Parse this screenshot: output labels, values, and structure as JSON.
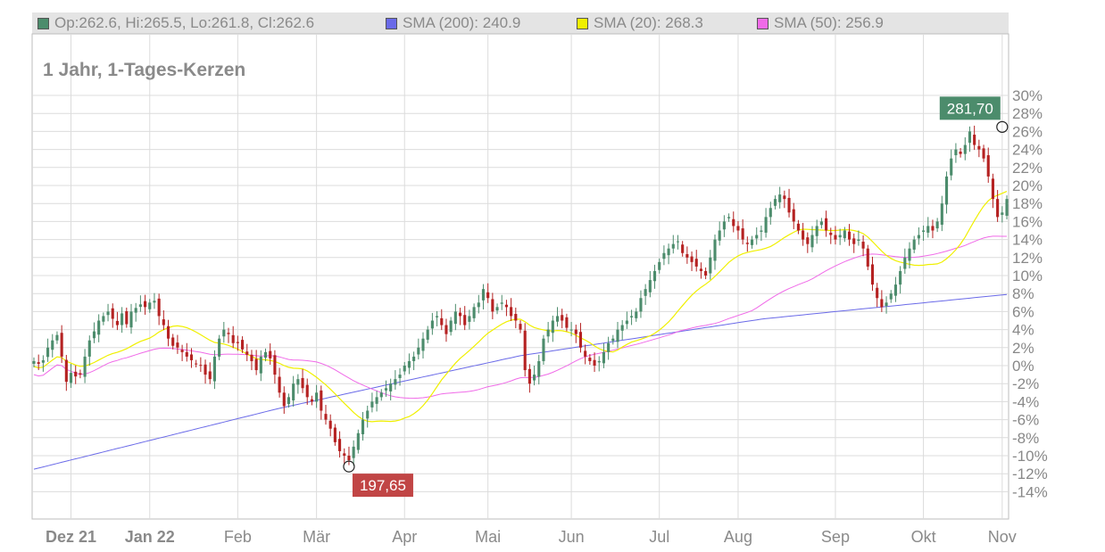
{
  "legend": {
    "ohlc": {
      "label": "Op:262.6, Hi:265.5, Lo:261.8, Cl:262.6",
      "color": "#4c8c6c"
    },
    "sma200": {
      "label": "SMA (200): 240.9",
      "color": "#6a6ae8"
    },
    "sma20": {
      "label": "SMA (20): 268.3",
      "color": "#f0f000"
    },
    "sma50": {
      "label": "SMA (50): 256.9",
      "color": "#f06ae8"
    }
  },
  "subtitle": "1 Jahr, 1-Tages-Kerzen",
  "colors": {
    "up": "#4c8c6c",
    "down": "#b52222",
    "grid": "#dcdcdc",
    "sma200": "#6a6ae8",
    "sma20": "#f0f000",
    "sma50": "#f06ae8"
  },
  "chart_data": {
    "type": "candlestick",
    "x_ticks": [
      {
        "label": "Dez 21",
        "bold": true,
        "index": 8
      },
      {
        "label": "Jan 22",
        "bold": true,
        "index": 25
      },
      {
        "label": "Feb",
        "bold": false,
        "index": 44
      },
      {
        "label": "Mär",
        "bold": false,
        "index": 61
      },
      {
        "label": "Apr",
        "bold": false,
        "index": 80
      },
      {
        "label": "Mai",
        "bold": false,
        "index": 98
      },
      {
        "label": "Jun",
        "bold": false,
        "index": 116
      },
      {
        "label": "Jul",
        "bold": false,
        "index": 135
      },
      {
        "label": "Aug",
        "bold": false,
        "index": 152
      },
      {
        "label": "Sep",
        "bold": false,
        "index": 173
      },
      {
        "label": "Okt",
        "bold": false,
        "index": 192
      },
      {
        "label": "Nov",
        "bold": false,
        "index": 209
      }
    ],
    "y_ticks": [
      "30%",
      "28%",
      "26%",
      "24%",
      "22%",
      "20%",
      "18%",
      "16%",
      "14%",
      "12%",
      "10%",
      "8%",
      "6%",
      "4%",
      "2%",
      "0%",
      "-2%",
      "-4%",
      "-6%",
      "-8%",
      "-10%",
      "-12%",
      "-14%"
    ],
    "ylim": [
      -17,
      31
    ],
    "annotations": [
      {
        "label": "281,70",
        "index": 209,
        "value": 26.5,
        "kind": "high",
        "color": "#4c8c6c"
      },
      {
        "label": "197,65",
        "index": 68,
        "value": -11.2,
        "kind": "low",
        "color": "#c14545"
      }
    ],
    "close_pct": [
      0.5,
      0.2,
      0.6,
      2.0,
      2.8,
      3.4,
      1.0,
      -1.8,
      -0.8,
      -1.2,
      -1.0,
      1.0,
      2.8,
      3.8,
      5.0,
      5.5,
      6.0,
      5.2,
      4.5,
      5.8,
      4.6,
      6.0,
      6.4,
      6.8,
      6.5,
      7.0,
      7.2,
      5.5,
      4.5,
      3.0,
      2.2,
      2.0,
      1.5,
      1.0,
      0.6,
      0.2,
      0.0,
      -1.0,
      -1.5,
      1.0,
      3.0,
      4.0,
      3.5,
      2.5,
      2.5,
      1.8,
      1.2,
      0.5,
      -0.5,
      1.0,
      1.5,
      0.8,
      -1.0,
      -3.0,
      -4.5,
      -3.5,
      -2.0,
      -1.5,
      -2.5,
      -3.5,
      -4.0,
      -3.0,
      -5.0,
      -6.0,
      -7.0,
      -8.5,
      -9.5,
      -10.0,
      -10.5,
      -9.0,
      -7.5,
      -6.0,
      -5.0,
      -4.0,
      -3.5,
      -3.0,
      -2.5,
      -2.0,
      -1.5,
      -1.0,
      0.0,
      0.5,
      1.0,
      2.0,
      3.0,
      4.0,
      5.0,
      5.5,
      4.5,
      3.5,
      5.0,
      6.0,
      5.5,
      4.5,
      5.5,
      6.5,
      7.0,
      8.5,
      7.5,
      6.0,
      6.5,
      7.0,
      6.5,
      5.5,
      5.0,
      4.0,
      -0.5,
      -2.0,
      -1.0,
      0.5,
      3.0,
      4.0,
      5.0,
      5.5,
      5.0,
      4.2,
      4.0,
      3.5,
      2.0,
      1.0,
      0.5,
      0.0,
      0.5,
      1.5,
      2.5,
      3.0,
      4.0,
      4.5,
      5.0,
      5.5,
      6.0,
      7.5,
      8.5,
      9.5,
      10.5,
      11.5,
      12.5,
      13.0,
      13.5,
      13.8,
      12.5,
      12.0,
      11.5,
      11.0,
      10.5,
      10.0,
      12.0,
      14.0,
      15.0,
      16.0,
      16.5,
      15.5,
      15.0,
      14.0,
      13.5,
      14.0,
      14.5,
      15.0,
      16.5,
      17.5,
      18.5,
      19.0,
      18.5,
      17.0,
      16.0,
      15.0,
      14.0,
      13.5,
      14.5,
      15.5,
      16.0,
      15.0,
      14.5,
      14.0,
      14.5,
      15.0,
      14.0,
      13.5,
      14.0,
      13.0,
      11.0,
      9.0,
      7.5,
      6.5,
      7.0,
      8.0,
      9.0,
      10.5,
      12.0,
      13.0,
      14.0,
      14.5,
      15.0,
      15.5,
      15.0,
      16.0,
      18.0,
      21.0,
      23.0,
      24.0,
      23.5,
      24.5,
      26.0,
      24.5,
      24.0,
      23.0,
      21.0,
      18.5,
      16.5,
      17.0,
      18.5
    ],
    "sma200_pct": [
      -11.5,
      -4.8,
      1.1,
      5.2,
      7.9
    ],
    "series": [
      {
        "name": "SMA (200)",
        "value": 240.9
      },
      {
        "name": "SMA (20)",
        "value": 268.3
      },
      {
        "name": "SMA (50)",
        "value": 256.9
      }
    ]
  }
}
